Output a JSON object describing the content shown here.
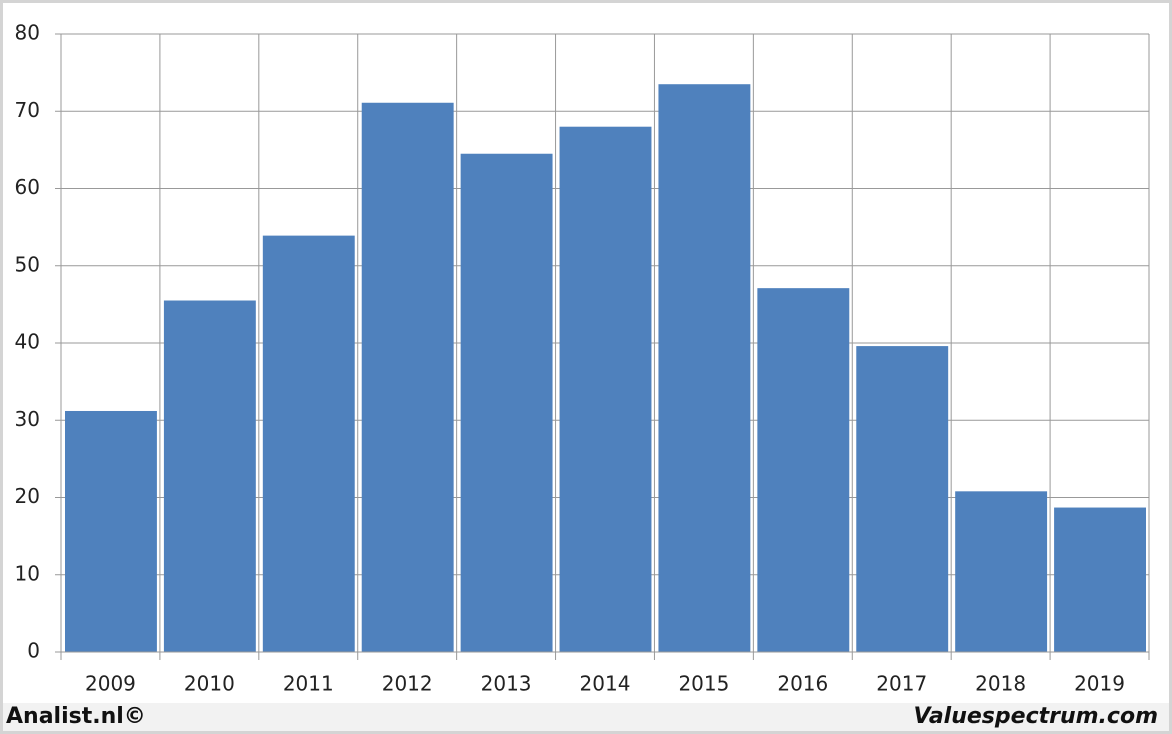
{
  "chart_data": {
    "type": "bar",
    "categories": [
      "2009",
      "2010",
      "2011",
      "2012",
      "2013",
      "2014",
      "2015",
      "2016",
      "2017",
      "2018",
      "2019"
    ],
    "values": [
      31.2,
      45.5,
      53.9,
      71.1,
      64.5,
      68.0,
      73.5,
      47.1,
      39.6,
      20.8,
      18.7
    ],
    "color": "#4f81bd",
    "ylim": [
      0,
      80
    ],
    "yticks": [
      0,
      10,
      20,
      30,
      40,
      50,
      60,
      70,
      80
    ],
    "grid": true,
    "footer_left": "Analist.nl©",
    "footer_right": "Valuespectrum.com"
  }
}
